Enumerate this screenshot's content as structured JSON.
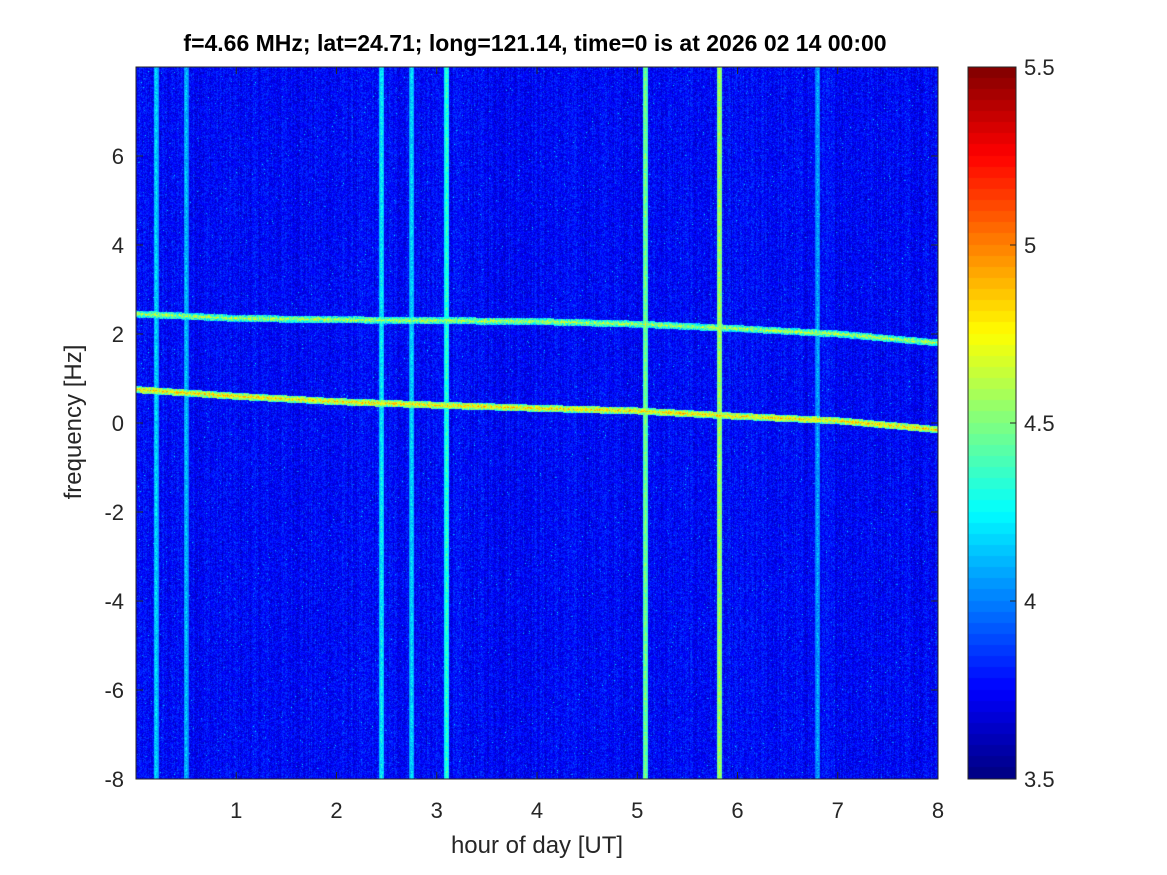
{
  "chart_data": {
    "type": "heatmap",
    "title": "f=4.66 MHz;  lat=24.71; long=121.14, time=0 is at 2026 02 14 00:00",
    "xlabel": "hour of day [UT]",
    "ylabel": "frequency [Hz]",
    "xlim": [
      0,
      8
    ],
    "ylim": [
      -8,
      8
    ],
    "x_ticks": [
      "1",
      "2",
      "3",
      "4",
      "5",
      "6",
      "7",
      "8"
    ],
    "y_ticks": [
      "-8",
      "-6",
      "-4",
      "-2",
      "0",
      "2",
      "4",
      "6"
    ],
    "colorbar": {
      "colormap": "jet",
      "clim": [
        3.5,
        5.5
      ],
      "ticks": [
        "3.5",
        "4",
        "4.5",
        "5",
        "5.5"
      ]
    },
    "background_level": 3.75,
    "traces": [
      {
        "x": [
          0,
          1,
          2,
          3,
          4,
          5,
          6,
          7,
          8
        ],
        "y": [
          0.75,
          0.6,
          0.48,
          0.4,
          0.33,
          0.27,
          0.15,
          0.05,
          -0.15
        ],
        "level": 4.8
      },
      {
        "x": [
          0,
          1,
          2,
          3,
          4,
          5,
          6,
          7,
          8
        ],
        "y": [
          2.45,
          2.35,
          2.32,
          2.3,
          2.28,
          2.22,
          2.12,
          2.0,
          1.8
        ],
        "level": 4.6
      }
    ],
    "vertical_lines": [
      {
        "x": 0.2,
        "level": 4.2
      },
      {
        "x": 0.5,
        "level": 4.15
      },
      {
        "x": 2.45,
        "level": 4.25
      },
      {
        "x": 2.75,
        "level": 4.2
      },
      {
        "x": 3.1,
        "level": 4.35
      },
      {
        "x": 5.08,
        "level": 4.5
      },
      {
        "x": 5.82,
        "level": 4.6
      },
      {
        "x": 6.8,
        "level": 4.1
      }
    ]
  }
}
